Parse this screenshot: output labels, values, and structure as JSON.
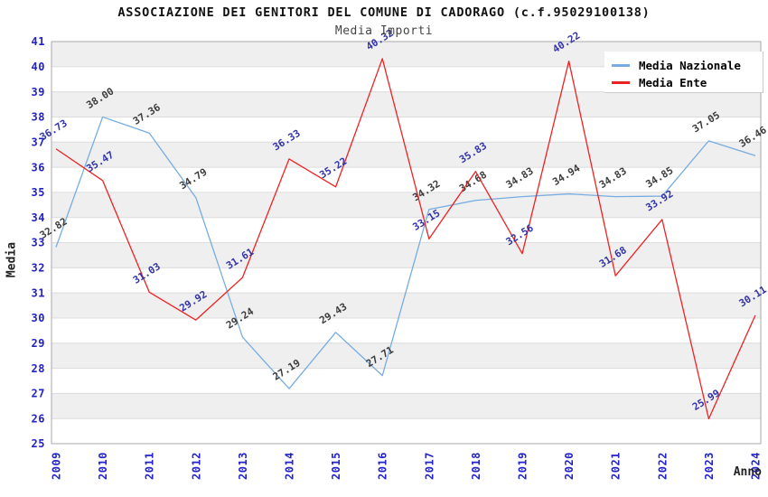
{
  "header": {
    "title": "ASSOCIAZIONE DEI GENITORI DEL COMUNE DI CADORAGO (c.f.95029100138)",
    "subtitle": "Media Importi"
  },
  "legend": {
    "items": [
      {
        "label": "Media Nazionale"
      },
      {
        "label": "Media Ente"
      }
    ]
  },
  "chart_data": {
    "type": "line",
    "title": "ASSOCIAZIONE DEI GENITORI DEL COMUNE DI CADORAGO (c.f.95029100138)",
    "subtitle": "Media Importi",
    "xlabel": "Anno",
    "ylabel": "Media",
    "x": [
      2009,
      2010,
      2011,
      2012,
      2013,
      2014,
      2015,
      2016,
      2017,
      2018,
      2019,
      2020,
      2021,
      2022,
      2023,
      2024
    ],
    "series": [
      {
        "name": "Media Nazionale",
        "color": "#76ace1",
        "label_color": "#3c3c3c",
        "values": [
          32.82,
          38.0,
          37.36,
          34.79,
          29.24,
          27.19,
          29.43,
          27.71,
          34.32,
          34.68,
          34.83,
          34.94,
          34.83,
          34.85,
          37.05,
          36.46
        ]
      },
      {
        "name": "Media Ente",
        "color": "#ee2222",
        "label_color": "#3333aa",
        "values": [
          36.73,
          35.47,
          31.03,
          29.92,
          31.61,
          36.33,
          35.22,
          40.32,
          33.15,
          35.83,
          32.56,
          40.22,
          31.68,
          33.92,
          25.99,
          30.11
        ]
      }
    ],
    "ylim": [
      25,
      41
    ],
    "ytick_step": 1,
    "grid": true,
    "legend_position": "top-right",
    "axis_tick_color": "#2222cc",
    "band_colors": [
      "#efefef",
      "#ffffff"
    ],
    "gridline_color": "#dcdcdc",
    "plot_border_color": "#aaaaaa"
  }
}
